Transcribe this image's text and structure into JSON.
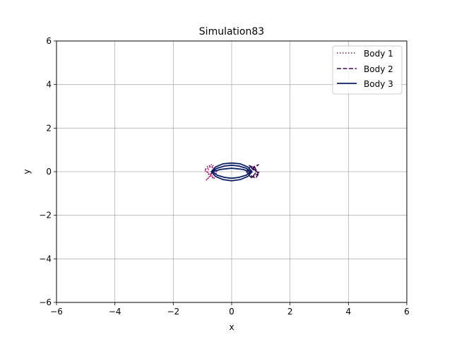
{
  "chart_data": {
    "type": "line",
    "title": "Simulation83",
    "xlabel": "x",
    "ylabel": "y",
    "xlim": [
      -6,
      6
    ],
    "ylim": [
      -6,
      6
    ],
    "xticks": [
      -6,
      -4,
      -2,
      0,
      2,
      4,
      6
    ],
    "yticks": [
      -6,
      -4,
      -2,
      0,
      2,
      4,
      6
    ],
    "xtick_labels": [
      "−6",
      "−4",
      "−2",
      "0",
      "2",
      "4",
      "6"
    ],
    "ytick_labels": [
      "−6",
      "−4",
      "−2",
      "0",
      "2",
      "4",
      "6"
    ],
    "grid": true,
    "legend_position": "top-right",
    "series": [
      {
        "name": "Body 1",
        "color": "#a3006b",
        "style": "dotted",
        "x": [
          -0.5,
          -0.72,
          -0.9,
          -0.78,
          -0.58,
          -0.75,
          -0.92,
          -0.8,
          -0.6,
          -0.74,
          -0.88,
          -0.7,
          -0.55,
          -0.68,
          -0.85,
          -0.66,
          -0.52
        ],
        "y": [
          0.0,
          0.25,
          0.1,
          -0.15,
          -0.32,
          -0.08,
          0.05,
          0.3,
          0.18,
          -0.22,
          -0.4,
          -0.12,
          0.12,
          0.35,
          0.0,
          -0.28,
          -0.05
        ]
      },
      {
        "name": "Body 2",
        "color": "#3b0a4f",
        "style": "dashed",
        "x": [
          0.5,
          0.72,
          0.9,
          0.8,
          0.6,
          0.78,
          0.95,
          0.82,
          0.62,
          0.75,
          0.92,
          0.7,
          0.55,
          0.68,
          0.86,
          0.66,
          0.52
        ],
        "y": [
          0.0,
          -0.25,
          -0.1,
          0.18,
          0.28,
          0.05,
          -0.05,
          -0.3,
          -0.15,
          0.22,
          0.32,
          0.1,
          -0.12,
          -0.28,
          0.0,
          0.25,
          0.05
        ]
      },
      {
        "name": "Body 3",
        "color": "#0a1f63",
        "style": "solid",
        "x": [
          -0.7,
          -0.55,
          -0.3,
          0.0,
          0.3,
          0.55,
          0.7,
          0.55,
          0.3,
          0.0,
          -0.3,
          -0.55,
          -0.7,
          -0.5,
          -0.25,
          0.0,
          0.25,
          0.5,
          0.65,
          0.5,
          0.25,
          0.0,
          -0.25,
          -0.5,
          -0.65,
          -0.4,
          -0.15,
          0.0,
          0.15,
          0.4,
          0.6
        ],
        "y": [
          0.0,
          0.22,
          0.36,
          0.4,
          0.36,
          0.22,
          0.0,
          -0.22,
          -0.36,
          -0.42,
          -0.36,
          -0.22,
          0.0,
          0.16,
          0.26,
          0.3,
          0.26,
          0.16,
          0.0,
          -0.16,
          -0.26,
          -0.3,
          -0.26,
          -0.16,
          0.0,
          0.1,
          0.14,
          0.16,
          0.14,
          0.1,
          0.0
        ]
      }
    ]
  }
}
